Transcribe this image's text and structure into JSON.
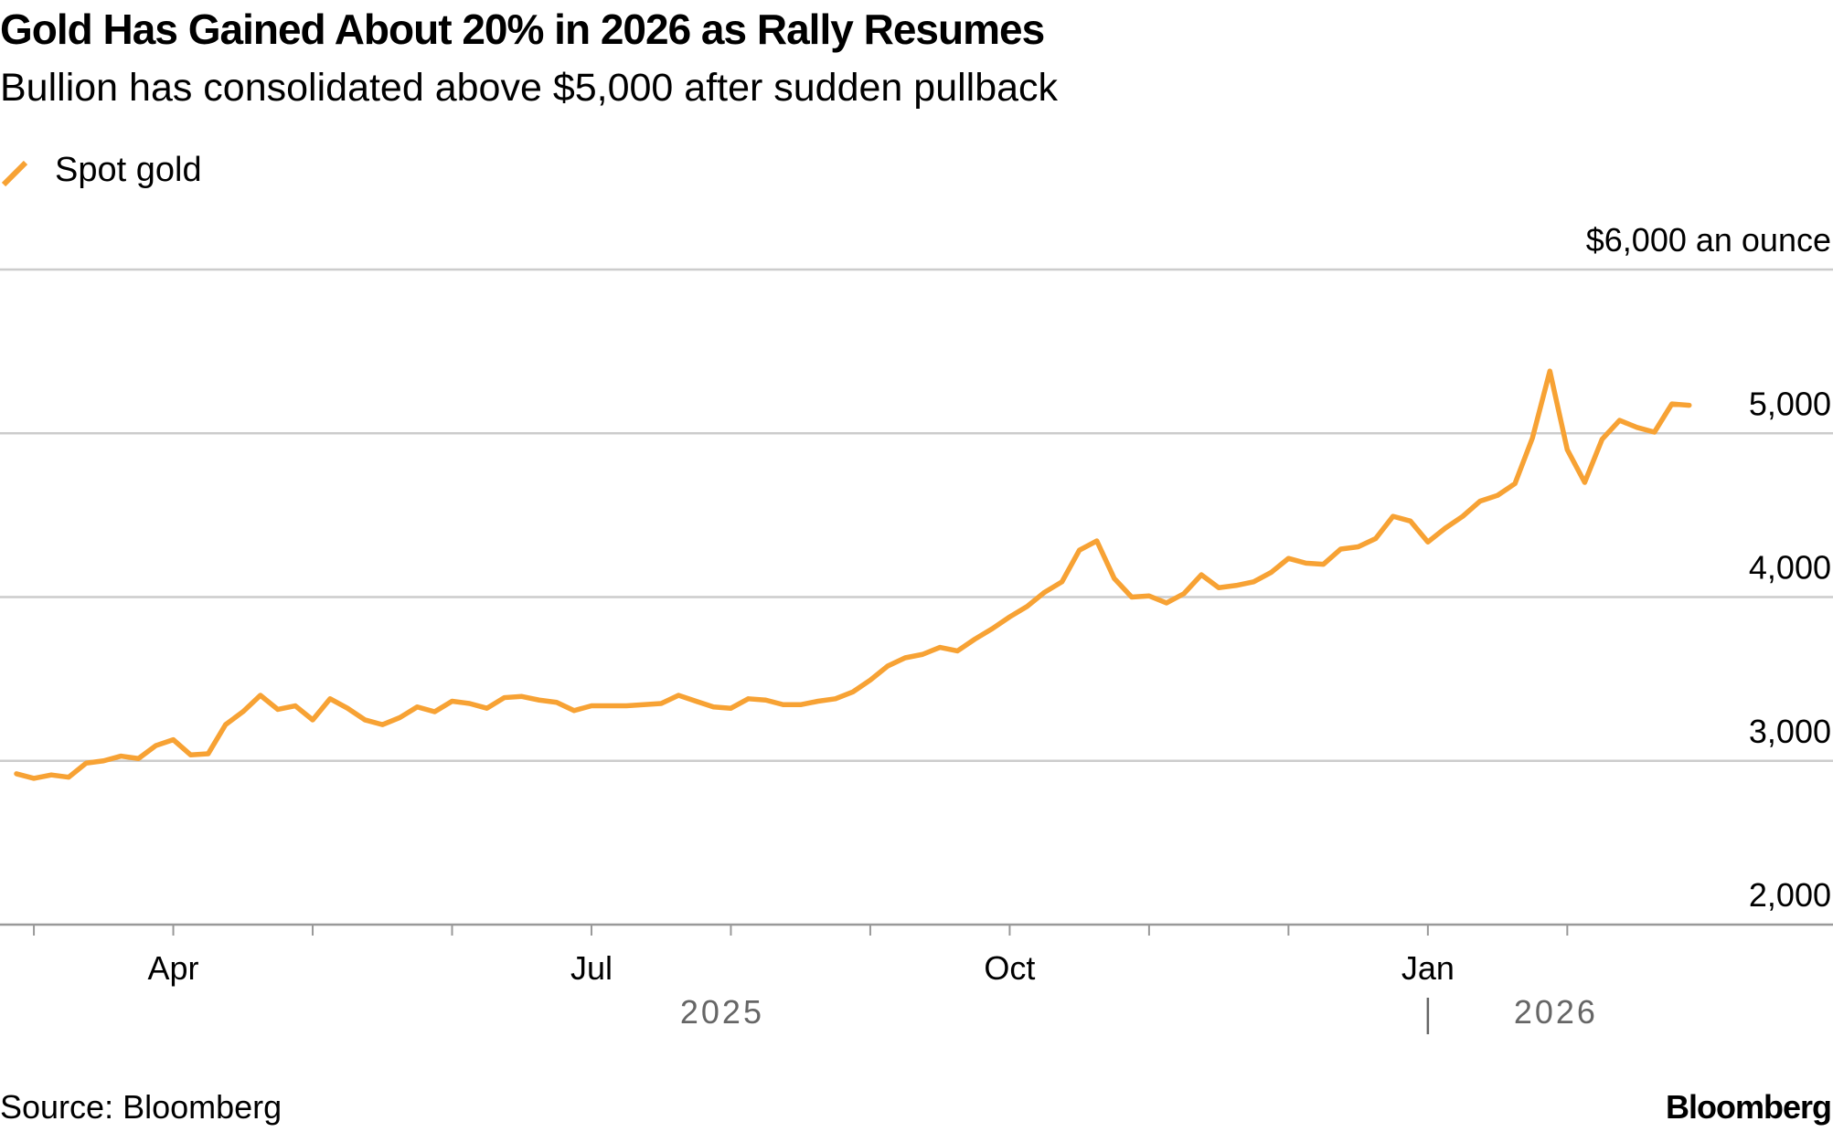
{
  "chart_data": {
    "type": "line",
    "title": "Gold Has Gained About 20% in 2026 as Rally Resumes",
    "subtitle": "Bullion has consolidated above $5,000 after sudden pullback",
    "categories": [
      null,
      null,
      null,
      null,
      null,
      null,
      null,
      null,
      null,
      "Apr",
      null,
      null,
      null,
      null,
      null,
      null,
      null,
      null,
      null,
      null,
      null,
      null,
      null,
      null,
      null,
      null,
      null,
      null,
      null,
      null,
      null,
      null,
      null,
      "Jul",
      null,
      null,
      null,
      null,
      null,
      null,
      null,
      null,
      null,
      null,
      null,
      null,
      null,
      null,
      null,
      null,
      null,
      null,
      null,
      null,
      null,
      null,
      null,
      "Oct",
      null,
      null,
      null,
      null,
      null,
      null,
      null,
      null,
      null,
      null,
      null,
      null,
      null,
      null,
      null,
      null,
      null,
      null,
      null,
      null,
      null,
      null,
      null,
      "Jan",
      null,
      null,
      null,
      null,
      null,
      null,
      null,
      null,
      null,
      null,
      null,
      null,
      null,
      null,
      null
    ],
    "x_period_labels": [
      "2025",
      "2026"
    ],
    "series": [
      {
        "name": "Spot gold",
        "color": "#f7a234",
        "values": [
          2921,
          2893,
          2914,
          2900,
          2986,
          3000,
          3029,
          3014,
          3093,
          3129,
          3036,
          3043,
          3221,
          3300,
          3400,
          3314,
          3336,
          3250,
          3379,
          3321,
          3250,
          3221,
          3264,
          3329,
          3300,
          3364,
          3350,
          3321,
          3386,
          3393,
          3371,
          3357,
          3307,
          3336,
          3336,
          3336,
          3343,
          3350,
          3400,
          3364,
          3329,
          3321,
          3379,
          3371,
          3343,
          3343,
          3364,
          3379,
          3421,
          3493,
          3579,
          3629,
          3650,
          3693,
          3671,
          3743,
          3807,
          3879,
          3943,
          4029,
          4093,
          4286,
          4343,
          4114,
          4000,
          4007,
          3964,
          4021,
          4136,
          4057,
          4071,
          4093,
          4150,
          4236,
          4207,
          4200,
          4293,
          4307,
          4357,
          4493,
          4464,
          4336,
          4421,
          4493,
          4586,
          4621,
          4693,
          4971,
          5380,
          4900,
          4700,
          4964,
          5079,
          5036,
          5007,
          5179,
          5171
        ]
      }
    ],
    "ylim": [
      2000,
      6000
    ],
    "yticks": [
      {
        "value": 2000,
        "label": "2,000"
      },
      {
        "value": 3000,
        "label": "3,000"
      },
      {
        "value": 4000,
        "label": "4,000"
      },
      {
        "value": 5000,
        "label": "5,000"
      },
      {
        "value": 6000,
        "label": "$6,000 an ounce"
      }
    ],
    "grid": true,
    "source": "Source: Bloomberg",
    "brand": "Bloomberg"
  }
}
